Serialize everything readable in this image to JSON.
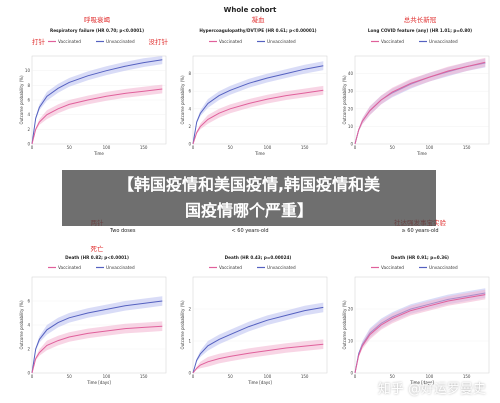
{
  "page": {
    "super_title": "Whole cohort",
    "row2_left": "Two doses",
    "row2_mid": "< 60 years-old",
    "row2_right": "≥ 60 years-old",
    "banner_lines": [
      "【韩国疫情和美国疫情,韩国疫情和美",
      "国疫情哪个严重】"
    ],
    "watermark": "知乎 @好运罗曼史"
  },
  "colors": {
    "vaccinated": "#e0609b",
    "unvaccinated": "#5561c0",
    "band_v": "#f3b3cf",
    "band_u": "#b9bff0",
    "red_annot": "#e03030"
  },
  "chart_data": [
    {
      "type": "line",
      "title": "Respiratory failure (HR 0.70; p<0.0001)",
      "cn_title": "呼吸衰竭",
      "cn_left": "打针",
      "cn_right": "没打针",
      "legend": [
        "Vaccinated",
        "Unvaccinated"
      ],
      "xlabel": "Time",
      "ylabel": "Outcome probability (%)",
      "xlim": [
        0,
        180
      ],
      "ylim": [
        0,
        12
      ],
      "xticks": [
        "0",
        "50",
        "100",
        "150"
      ],
      "yticks": [
        "0",
        "2",
        "4",
        "6",
        "8",
        "10"
      ],
      "x": [
        0,
        5,
        10,
        20,
        35,
        50,
        75,
        100,
        125,
        150,
        175
      ],
      "series": [
        {
          "name": "Unvaccinated",
          "values": [
            0,
            3.5,
            5.0,
            6.5,
            7.6,
            8.4,
            9.3,
            10.0,
            10.6,
            11.1,
            11.5
          ]
        },
        {
          "name": "Vaccinated",
          "values": [
            0,
            2.0,
            3.0,
            4.0,
            4.8,
            5.4,
            6.0,
            6.5,
            6.9,
            7.2,
            7.5
          ]
        }
      ]
    },
    {
      "type": "line",
      "title": "Hypercoagulopathy/DVT/PE (HR 0.61; p<0.00001)",
      "cn_title": "凝血",
      "legend": [
        "Vaccinated",
        "Unvaccinated"
      ],
      "xlabel": "Time",
      "ylabel": "Outcome probability (%)",
      "xlim": [
        0,
        180
      ],
      "ylim": [
        0,
        10
      ],
      "xticks": [
        "0",
        "50",
        "100",
        "150"
      ],
      "yticks": [
        "0",
        "2",
        "4",
        "6",
        "8"
      ],
      "x": [
        0,
        5,
        10,
        20,
        35,
        50,
        75,
        100,
        125,
        150,
        175
      ],
      "series": [
        {
          "name": "Unvaccinated",
          "values": [
            0,
            2.5,
            3.5,
            4.6,
            5.5,
            6.1,
            6.9,
            7.5,
            8.0,
            8.5,
            8.9
          ]
        },
        {
          "name": "Vaccinated",
          "values": [
            0,
            1.3,
            2.0,
            2.8,
            3.5,
            4.0,
            4.6,
            5.1,
            5.5,
            5.8,
            6.1
          ]
        }
      ]
    },
    {
      "type": "line",
      "title": "Long COVID feature (any) (HR 1.01; p=0.80)",
      "cn_title": "总共长新冠",
      "legend": [
        "Vaccinated",
        "Unvaccinated"
      ],
      "xlabel": "Time",
      "ylabel": "Outcome probability (%)",
      "xlim": [
        0,
        180
      ],
      "ylim": [
        0,
        50
      ],
      "xticks": [
        "0",
        "50",
        "100",
        "150"
      ],
      "yticks": [
        "0",
        "10",
        "20",
        "30",
        "40"
      ],
      "x": [
        0,
        5,
        10,
        20,
        35,
        50,
        75,
        100,
        125,
        150,
        175
      ],
      "series": [
        {
          "name": "Unvaccinated",
          "values": [
            0,
            8,
            13,
            19,
            25,
            29,
            34,
            38,
            41,
            44,
            46
          ]
        },
        {
          "name": "Vaccinated",
          "values": [
            0,
            8,
            13,
            19,
            25,
            29.5,
            34.5,
            38,
            41.5,
            44,
            46.5
          ]
        }
      ]
    },
    {
      "type": "line",
      "title": "Death (HR 0.82; p<0.0001)",
      "cn_title": "死亡",
      "cn_top": "两针",
      "legend": [
        "Vaccinated",
        "Unvaccinated"
      ],
      "xlabel": "Time [days]",
      "ylabel": "Outcome probability (%)",
      "xlim": [
        0,
        180
      ],
      "ylim": [
        0,
        8
      ],
      "xticks": [
        "0",
        "50",
        "100",
        "150"
      ],
      "yticks": [
        "0",
        "2",
        "4",
        "6"
      ],
      "x": [
        0,
        5,
        10,
        20,
        35,
        50,
        75,
        100,
        125,
        150,
        175
      ],
      "series": [
        {
          "name": "Unvaccinated",
          "values": [
            0,
            2.0,
            2.8,
            3.6,
            4.2,
            4.6,
            5.0,
            5.3,
            5.6,
            5.8,
            6.0
          ]
        },
        {
          "name": "Vaccinated",
          "values": [
            0,
            1.2,
            1.7,
            2.3,
            2.7,
            3.0,
            3.3,
            3.5,
            3.7,
            3.8,
            3.9
          ]
        }
      ]
    },
    {
      "type": "line",
      "title": "Death (HR 0.43; p=0.00024)",
      "legend": [
        "Vaccinated",
        "Unvaccinated"
      ],
      "xlabel": "Time [days]",
      "ylabel": "Outcome probability (%)",
      "xlim": [
        0,
        180
      ],
      "ylim": [
        0,
        3
      ],
      "xticks": [
        "0",
        "50",
        "100",
        "150"
      ],
      "yticks": [
        "0",
        "1",
        "2"
      ],
      "x": [
        0,
        5,
        10,
        20,
        35,
        50,
        75,
        100,
        125,
        150,
        175
      ],
      "series": [
        {
          "name": "Unvaccinated",
          "values": [
            0,
            0.4,
            0.6,
            0.85,
            1.05,
            1.2,
            1.45,
            1.65,
            1.8,
            1.95,
            2.05
          ]
        },
        {
          "name": "Vaccinated",
          "values": [
            0,
            0.15,
            0.25,
            0.35,
            0.45,
            0.52,
            0.62,
            0.7,
            0.78,
            0.84,
            0.9
          ]
        }
      ]
    },
    {
      "type": "line",
      "title": "Death (HR 0.91; p=0.36)",
      "cn_top": "社达强发事宝实验",
      "legend": [
        "Vaccinated",
        "Unvaccinated"
      ],
      "xlabel": "Time [days]",
      "ylabel": "Outcome probability (%)",
      "xlim": [
        0,
        180
      ],
      "ylim": [
        0,
        30
      ],
      "xticks": [
        "0",
        "50",
        "100",
        "150"
      ],
      "yticks": [
        "0",
        "10",
        "20"
      ],
      "x": [
        0,
        5,
        10,
        20,
        35,
        50,
        75,
        100,
        125,
        150,
        175
      ],
      "series": [
        {
          "name": "Unvaccinated",
          "values": [
            0,
            6,
            9,
            12.5,
            15.5,
            17.5,
            20,
            21.5,
            23,
            24,
            25
          ]
        },
        {
          "name": "Vaccinated",
          "values": [
            0,
            5.5,
            8.5,
            12,
            15,
            17,
            19.5,
            21,
            22.5,
            23.5,
            24.5
          ]
        }
      ]
    }
  ]
}
